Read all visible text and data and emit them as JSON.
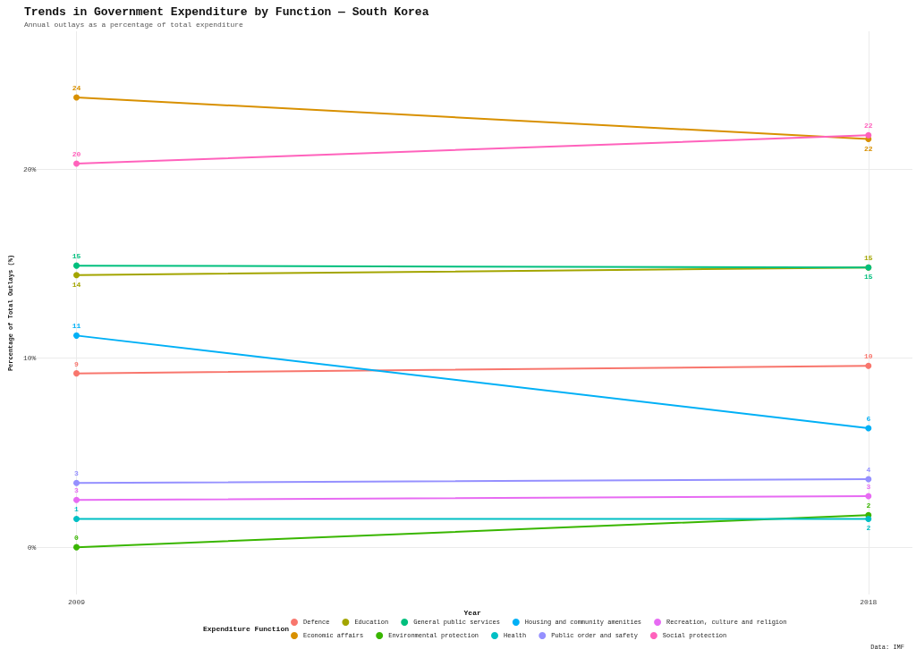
{
  "chart_data": {
    "type": "line",
    "title": "Trends in Government Expenditure by Function — South Korea",
    "subtitle": "Annual outlays as a percentage of total expenditure",
    "xlabel": "Year",
    "ylabel": "Percentage of Total Outlays (%)",
    "legend_title": "Expenditure Function",
    "x": [
      2009,
      2018
    ],
    "xlim": [
      2008.5,
      2018.5
    ],
    "xticks": [
      2009,
      2018
    ],
    "ylim": [
      -2.5,
      27.3
    ],
    "yticks": [
      {
        "value": 0,
        "label": "0%"
      },
      {
        "value": 10,
        "label": "10%"
      },
      {
        "value": 20,
        "label": "20%"
      }
    ],
    "grid": true,
    "legend": "bottom",
    "marker": "circle",
    "line_style": "solid",
    "series": [
      {
        "name": "Defence",
        "color": "#f8766d",
        "values": [
          9.2,
          9.6
        ],
        "value_labels": [
          "9",
          "10"
        ]
      },
      {
        "name": "Economic affairs",
        "color": "#d89000",
        "values": [
          23.8,
          21.6
        ],
        "value_labels": [
          "24",
          "22"
        ]
      },
      {
        "name": "Education",
        "color": "#a3a500",
        "values": [
          14.4,
          14.8
        ],
        "value_labels": [
          "14",
          "15"
        ]
      },
      {
        "name": "Environmental protection",
        "color": "#39b600",
        "values": [
          0.0,
          1.7
        ],
        "value_labels": [
          "0",
          "2"
        ]
      },
      {
        "name": "General public services",
        "color": "#00bf7d",
        "values": [
          14.9,
          14.8
        ],
        "value_labels": [
          "15",
          "15"
        ]
      },
      {
        "name": "Health",
        "color": "#00bfc4",
        "values": [
          1.5,
          1.5
        ],
        "value_labels": [
          "1",
          "2"
        ]
      },
      {
        "name": "Housing and community amenities",
        "color": "#00b0f6",
        "values": [
          11.2,
          6.3
        ],
        "value_labels": [
          "11",
          "6"
        ]
      },
      {
        "name": "Public order and safety",
        "color": "#9590ff",
        "values": [
          3.4,
          3.6
        ],
        "value_labels": [
          "3",
          "4"
        ]
      },
      {
        "name": "Recreation, culture and religion",
        "color": "#e76bf3",
        "values": [
          2.5,
          2.7
        ],
        "value_labels": [
          "3",
          "3"
        ]
      },
      {
        "name": "Social protection",
        "color": "#ff62bc",
        "values": [
          20.3,
          21.8
        ],
        "value_labels": [
          "20",
          "22"
        ]
      }
    ],
    "annotations": [
      "Data: IMF"
    ]
  }
}
